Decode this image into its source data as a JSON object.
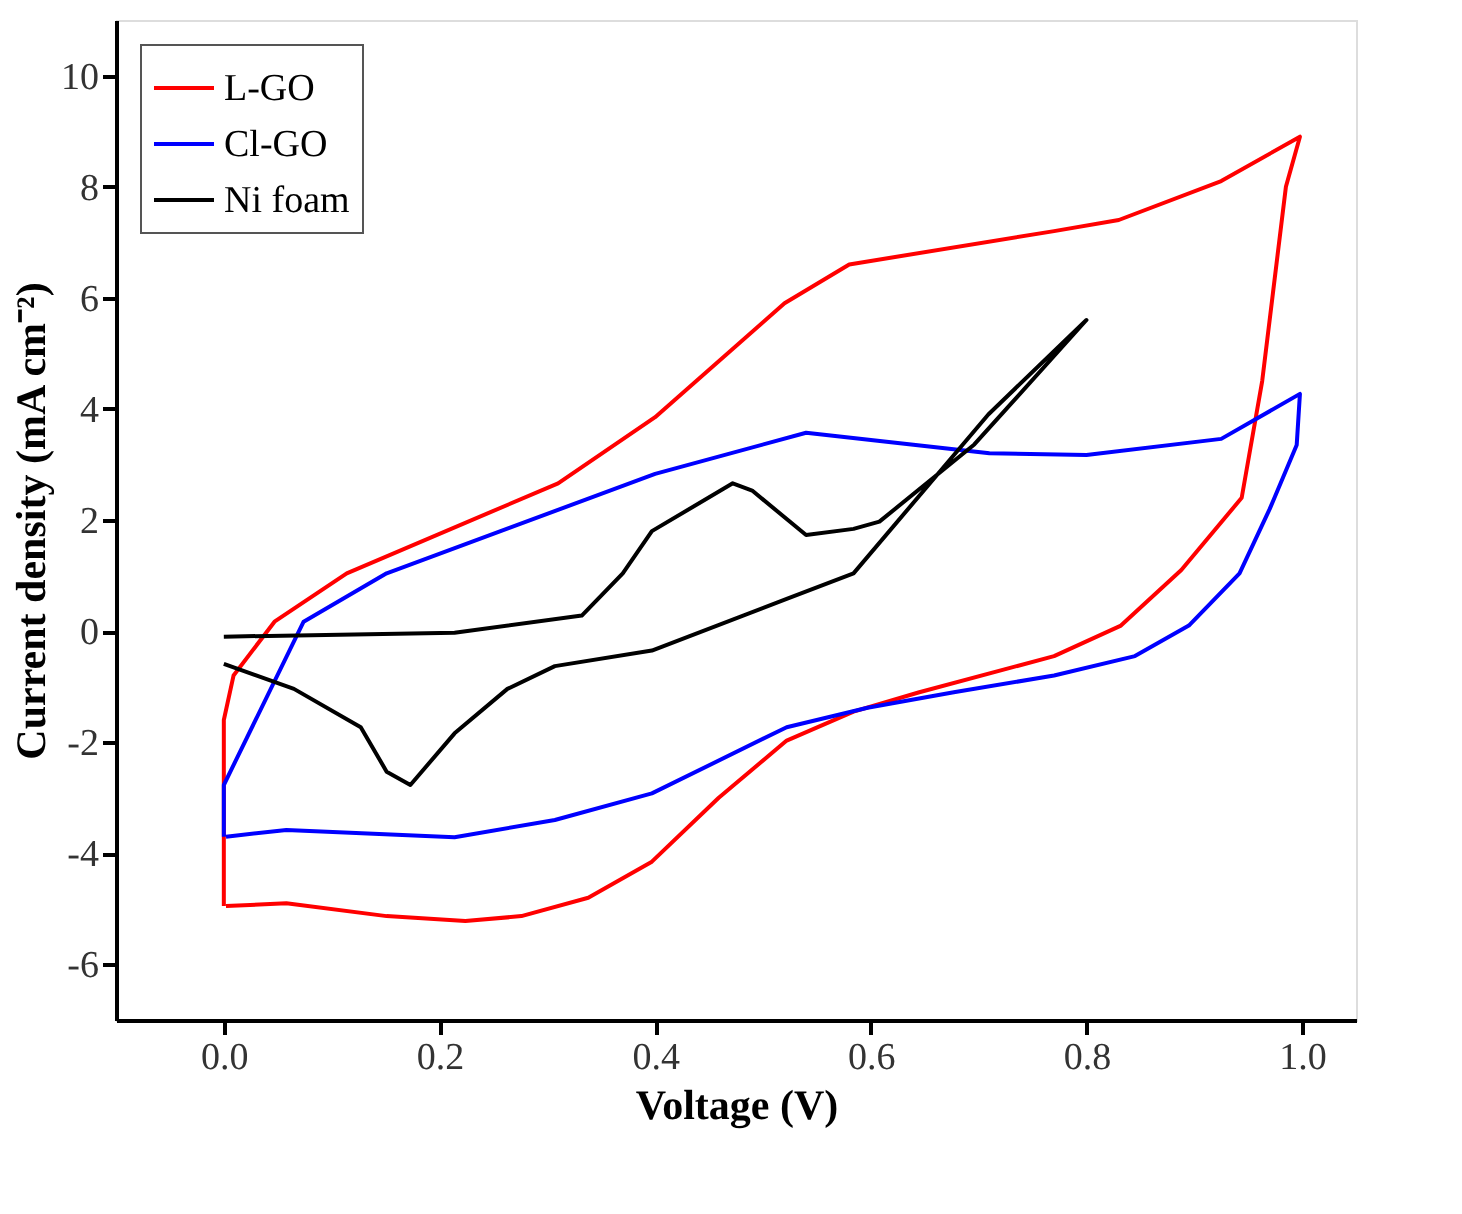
{
  "chart_data": {
    "type": "line",
    "xlabel": "Voltage (V)",
    "ylabel": "Current density (mA cm⁻²)",
    "xlim": [
      -0.1,
      1.05
    ],
    "ylim": [
      -7,
      11
    ],
    "xticks": [
      {
        "value": 0,
        "label": "0.0"
      },
      {
        "value": 0.2,
        "label": "0.2"
      },
      {
        "value": 0.4,
        "label": "0.4"
      },
      {
        "value": 0.6,
        "label": "0.6"
      },
      {
        "value": 0.8,
        "label": "0.8"
      },
      {
        "value": 1,
        "label": "1.0"
      }
    ],
    "yticks": [
      -6,
      -4,
      -2,
      0,
      2,
      4,
      6,
      8,
      10
    ],
    "grid": false,
    "legend": "top left",
    "line_style": "solid",
    "marker": "none",
    "series": [
      {
        "name": "L-GO",
        "color": "#ff0000",
        "x": [
          0,
          0,
          0.009,
          0.047,
          0.114,
          0.31,
          0.4,
          0.52,
          0.58,
          0.77,
          0.83,
          0.925,
          0.998,
          0.985,
          0.963,
          0.944,
          0.888,
          0.832,
          0.77,
          0.645,
          0.584,
          0.522,
          0.459,
          0.397,
          0.338,
          0.276,
          0.224,
          0.151,
          0.058,
          0.002
        ],
        "values": [
          -4.95,
          -1.6,
          -0.8,
          0.17,
          1.04,
          2.66,
          3.85,
          5.9,
          6.6,
          7.2,
          7.4,
          8.1,
          8.9,
          8.0,
          4.5,
          2.4,
          1.1,
          0.1,
          -0.45,
          -1.1,
          -1.45,
          -1.97,
          -3.0,
          -4.15,
          -4.8,
          -5.13,
          -5.22,
          -5.13,
          -4.9,
          -4.95
        ]
      },
      {
        "name": "Cl-GO",
        "color": "#0000ff",
        "x": [
          0,
          0,
          0.074,
          0.151,
          0.4,
          0.54,
          0.71,
          0.8,
          0.925,
          0.998,
          0.995,
          0.97,
          0.942,
          0.895,
          0.845,
          0.77,
          0.677,
          0.597,
          0.522,
          0.397,
          0.307,
          0.214,
          0.058,
          0.002
        ],
        "values": [
          -3.7,
          -2.77,
          0.17,
          1.04,
          2.83,
          3.57,
          3.2,
          3.17,
          3.46,
          4.27,
          3.35,
          2.2,
          1.04,
          0.1,
          -0.45,
          -0.8,
          -1.1,
          -1.38,
          -1.73,
          -2.92,
          -3.4,
          -3.71,
          -3.58,
          -3.7
        ]
      },
      {
        "name": "Ni foam",
        "color": "#000000",
        "x": [
          0,
          0.214,
          0.332,
          0.37,
          0.397,
          0.472,
          0.49,
          0.54,
          0.584,
          0.608,
          0.696,
          0.8,
          0.709,
          0.584,
          0.522,
          0.397,
          0.307,
          0.263,
          0.214,
          0.173,
          0.151,
          0.127,
          0.065,
          0
        ],
        "values": [
          -0.1,
          -0.03,
          0.28,
          1.04,
          1.8,
          2.66,
          2.53,
          1.73,
          1.84,
          1.97,
          3.36,
          5.6,
          3.9,
          1.04,
          0.58,
          -0.35,
          -0.63,
          -1.04,
          -1.84,
          -2.77,
          -2.53,
          -1.73,
          -1.04,
          -0.59
        ]
      }
    ]
  }
}
